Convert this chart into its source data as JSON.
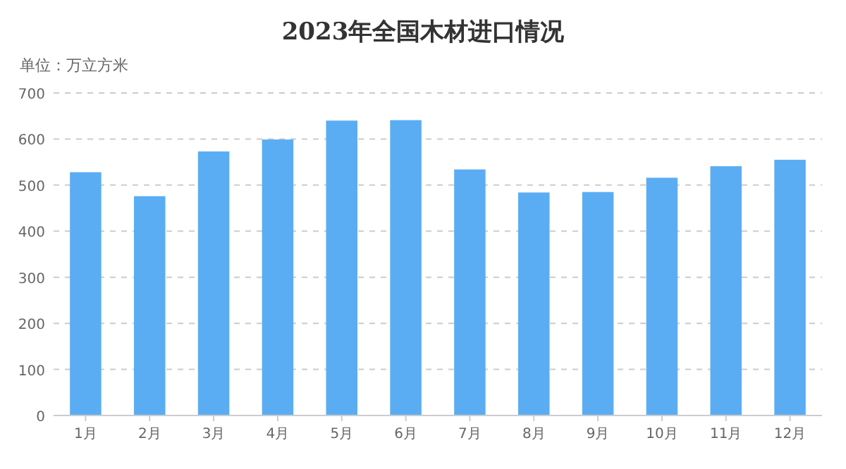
{
  "chart_data": {
    "type": "bar",
    "title": "2023年全国木材进口情况",
    "ylabel": "单位：万立方米",
    "categories": [
      "1月",
      "2月",
      "3月",
      "4月",
      "5月",
      "6月",
      "7月",
      "8月",
      "9月",
      "10月",
      "11月",
      "12月"
    ],
    "values": [
      528,
      476,
      573,
      599,
      640,
      641,
      534,
      484,
      485,
      516,
      541,
      555
    ],
    "color": "#5aadf3",
    "ylim": [
      0,
      700
    ],
    "yticks": [
      0,
      100,
      200,
      300,
      400,
      500,
      600,
      700
    ],
    "grid": "y"
  }
}
